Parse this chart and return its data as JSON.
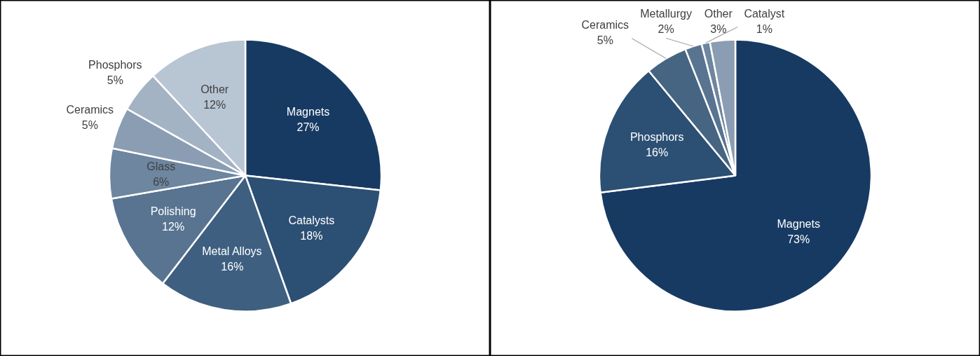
{
  "chart_data": [
    {
      "type": "pie",
      "categories": [
        "Magnets",
        "Catalysts",
        "Metal Alloys",
        "Polishing",
        "Glass",
        "Ceramics",
        "Phosphors",
        "Other"
      ],
      "values": [
        27,
        18,
        16,
        12,
        6,
        5,
        5,
        12
      ],
      "value_labels": [
        "27%",
        "18%",
        "16%",
        "12%",
        "6%",
        "5%",
        "5%",
        "12%"
      ],
      "colors": [
        "#173a63",
        "#2c4f74",
        "#3e5f80",
        "#587491",
        "#6e869f",
        "#8a9db2",
        "#a3b3c4",
        "#b8c5d3"
      ]
    },
    {
      "type": "pie",
      "categories": [
        "Magnets",
        "Phosphors",
        "Ceramics",
        "Metallurgy",
        "Catalyst",
        "Other"
      ],
      "values": [
        73,
        16,
        5,
        2,
        1,
        3
      ],
      "value_labels": [
        "73%",
        "16%",
        "5%",
        "2%",
        "1%",
        "3%"
      ],
      "colors": [
        "#173a63",
        "#2c4f74",
        "#456582",
        "#587491",
        "#6e869f",
        "#8a9db2"
      ]
    }
  ]
}
